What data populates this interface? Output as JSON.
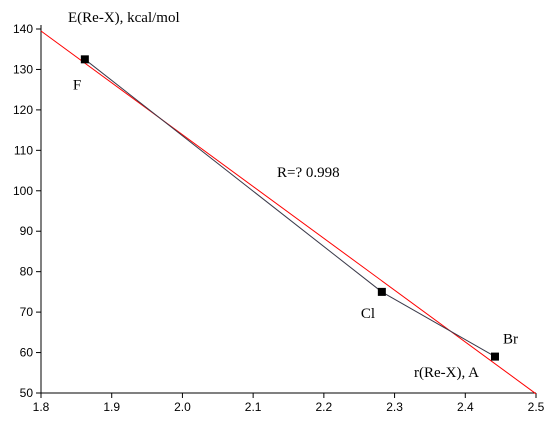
{
  "chart_data": {
    "type": "scatter",
    "title": "",
    "ylabel": "E(Re-X), kcal/mol",
    "xlabel": "r(Re-X), A",
    "xlim": [
      1.8,
      2.5
    ],
    "ylim": [
      50,
      140
    ],
    "xticks": [
      1.8,
      1.9,
      2.0,
      2.1,
      2.2,
      2.3,
      2.4,
      2.5
    ],
    "xtick_labels": [
      "1.8",
      "1.9",
      "2.0",
      "2.1",
      "2.2",
      "2.3",
      "2.4",
      "2.5"
    ],
    "yticks": [
      50,
      60,
      70,
      80,
      90,
      100,
      110,
      120,
      130,
      140
    ],
    "ytick_labels": [
      "50",
      "60",
      "70",
      "80",
      "90",
      "100",
      "110",
      "120",
      "130",
      "140"
    ],
    "grid": false,
    "series": [
      {
        "marker": "square",
        "line_color": "#3a3a4a",
        "marker_color": "#000000",
        "points": [
          {
            "x": 1.862,
            "y": 132.5,
            "label": "F"
          },
          {
            "x": 2.282,
            "y": 75.0,
            "label": "Cl"
          },
          {
            "x": 2.442,
            "y": 59.0,
            "label": "Br"
          }
        ]
      }
    ],
    "fit_line": {
      "color": "#ff0000",
      "from": {
        "x": 1.8,
        "y": 139.5
      },
      "to": {
        "x": 2.5,
        "y": 49.8
      }
    },
    "annotation": "R=? 0.998"
  }
}
